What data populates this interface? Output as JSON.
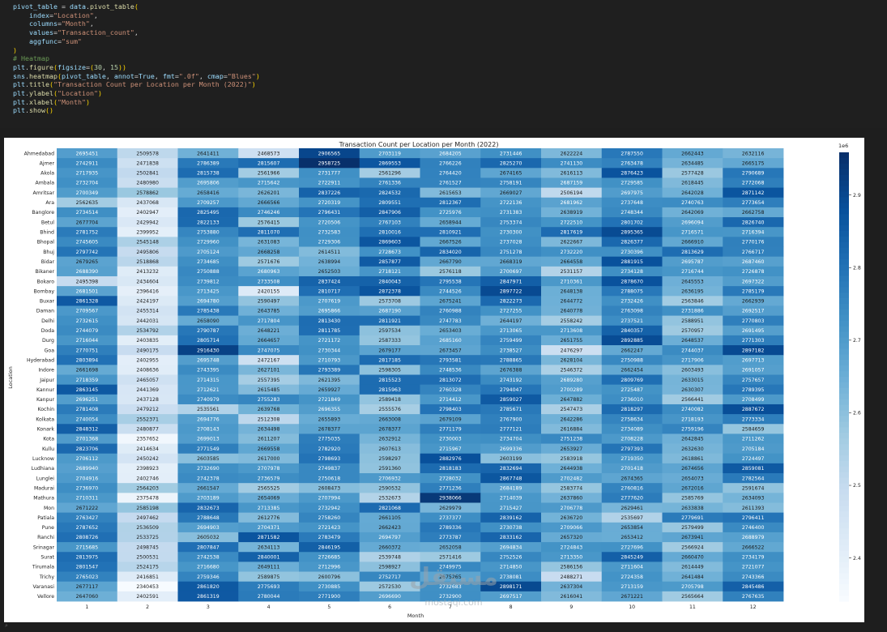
{
  "code": {
    "lines": [
      "pivot_table = data.pivot_table(",
      "    index=\"Location\",",
      "    columns=\"Month\",",
      "    values=\"Transaction_count\",",
      "    aggfunc=\"sum\"",
      ")",
      "# Heatmap",
      "plt.figure(figsize=(30, 15))",
      "sns.heatmap(pivot_table, annot=True, fmt=\".0f\", cmap=\"Blues\")",
      "plt.title(\"Transaction Count per Location per Month (2022)\")",
      "plt.ylabel(\"Location\")",
      "plt.xlabel(\"Month\")",
      "plt.show()"
    ]
  },
  "watermark": {
    "arabic": "مستقل",
    "latin": "mostaql.com"
  },
  "corner_glyph": "⌕",
  "chart_data": {
    "type": "heatmap",
    "title": "Transaction Count per Location per Month (2022)",
    "xlabel": "Month",
    "ylabel": "Location",
    "colormap": "Blues",
    "color_range": [
      2340453,
      2958725
    ],
    "colorbar": {
      "ticks": [
        2.4,
        2.5,
        2.6,
        2.7,
        2.8,
        2.9
      ],
      "multiplier": "1e6"
    },
    "columns": [
      "1",
      "2",
      "3",
      "4",
      "5",
      "6",
      "7",
      "8",
      "9",
      "10",
      "11",
      "12"
    ],
    "rows": [
      "Ahmedabad",
      "Ajmer",
      "Akola",
      "Ambala",
      "Amritsar",
      "Ara",
      "Banglore",
      "Betul",
      "Bhind",
      "Bhopal",
      "Bhuj",
      "Bidar",
      "Bikaner",
      "Bokaro",
      "Bombay",
      "Buxar",
      "Daman",
      "Delhi",
      "Doda",
      "Durg",
      "Goa",
      "Hyderabad",
      "Indore",
      "Jaipur",
      "Kannur",
      "Kanpur",
      "Kochin",
      "Kolkata",
      "Konark",
      "Kota",
      "Kullu",
      "Lucknow",
      "Ludhiana",
      "Lunglei",
      "Madurai",
      "Mathura",
      "Mon",
      "Patiala",
      "Pune",
      "Ranchi",
      "Srinagar",
      "Surat",
      "Tirumala",
      "Trichy",
      "Varanasi",
      "Vellore"
    ],
    "values": [
      [
        2695451,
        2509578,
        2641411,
        2468573,
        2906565,
        2703119,
        2684205,
        2731446,
        2622224,
        2787550,
        2662443,
        2632116
      ],
      [
        2742911,
        2471838,
        2786389,
        2815607,
        2958725,
        2869553,
        2766226,
        2825270,
        2741130,
        2763478,
        2634485,
        2665175
      ],
      [
        2717935,
        2502841,
        2815738,
        2561966,
        2731777,
        2561296,
        2764420,
        2674165,
        2616113,
        2876423,
        2577428,
        2790689
      ],
      [
        2732704,
        2480980,
        2695806,
        2715642,
        2722911,
        2761336,
        2761527,
        2758191,
        2687159,
        2729585,
        2618445,
        2772068
      ],
      [
        2700349,
        2578862,
        2658416,
        2626201,
        2837226,
        2824532,
        2615653,
        2669027,
        2506194,
        2697975,
        2642028,
        2871142
      ],
      [
        2562635,
        2437068,
        2709257,
        2666566,
        2720319,
        2809551,
        2812367,
        2722136,
        2681962,
        2737648,
        2740763,
        2773654
      ],
      [
        2734514,
        2402947,
        2825495,
        2746246,
        2796431,
        2847906,
        2725976,
        2731383,
        2638919,
        2748344,
        2642069,
        2662758
      ],
      [
        2677704,
        2429942,
        2822133,
        2576415,
        2720506,
        2767103,
        2658944,
        2753374,
        2722510,
        2801702,
        2696094,
        2826740
      ],
      [
        2781752,
        2399952,
        2753880,
        2811070,
        2732583,
        2810016,
        2810921,
        2730300,
        2817619,
        2895365,
        2716571,
        2716394
      ],
      [
        2745605,
        2545148,
        2729960,
        2631083,
        2729306,
        2869603,
        2667526,
        2737028,
        2622667,
        2826377,
        2666910,
        2770176
      ],
      [
        2797742,
        2495806,
        2705124,
        2668258,
        2614511,
        2728673,
        2834020,
        2751278,
        2732220,
        2730396,
        2813629,
        2766717
      ],
      [
        2679265,
        2518868,
        2734685,
        2571676,
        2638994,
        2857877,
        2667790,
        2668319,
        2664558,
        2881915,
        2695787,
        2687460
      ],
      [
        2688390,
        2413232,
        2750888,
        2680963,
        2652503,
        2718121,
        2576118,
        2700697,
        2531157,
        2734128,
        2716744,
        2726878
      ],
      [
        2495398,
        2434604,
        2739812,
        2733508,
        2837424,
        2840043,
        2795538,
        2847971,
        2710361,
        2878670,
        2645553,
        2697322
      ],
      [
        2681501,
        2396416,
        2713425,
        2420155,
        2810717,
        2872378,
        2744526,
        2897722,
        2648138,
        2788075,
        2636195,
        2785179
      ],
      [
        2861328,
        2424197,
        2694780,
        2590497,
        2707619,
        2573708,
        2675241,
        2822273,
        2644772,
        2732426,
        2563846,
        2662939
      ],
      [
        2709567,
        2455314,
        2785438,
        2643785,
        2695866,
        2687190,
        2760988,
        2727255,
        2640778,
        2763098,
        2731886,
        2692517
      ],
      [
        2732615,
        2442031,
        2658090,
        2717804,
        2813430,
        2811921,
        2747783,
        2644197,
        2558242,
        2737521,
        2588951,
        2770803
      ],
      [
        2744079,
        2534792,
        2790787,
        2648221,
        2811785,
        2597534,
        2653403,
        2713065,
        2713608,
        2840357,
        2570957,
        2691495
      ],
      [
        2716044,
        2403835,
        2805714,
        2664657,
        2721172,
        2587333,
        2685160,
        2759499,
        2651755,
        2892885,
        2648537,
        2771303
      ],
      [
        2770751,
        2490175,
        2916430,
        2747075,
        2730344,
        2679177,
        2673457,
        2738527,
        2476297,
        2662247,
        2744037,
        2897182
      ],
      [
        2803894,
        2402955,
        2695748,
        2472167,
        2710793,
        2817185,
        2793581,
        2788865,
        2628104,
        2750988,
        2717906,
        2697713
      ],
      [
        2661698,
        2408636,
        2743395,
        2627101,
        2793389,
        2598305,
        2748536,
        2676388,
        2546372,
        2662454,
        2603493,
        2691057
      ],
      [
        2718359,
        2465057,
        2714315,
        2557395,
        2621395,
        2815523,
        2813072,
        2743192,
        2689280,
        2809769,
        2633015,
        2757657
      ],
      [
        2863145,
        2441369,
        2712621,
        2615485,
        2659927,
        2815963,
        2760328,
        2794047,
        2700289,
        2725487,
        2630307,
        2789395
      ],
      [
        2696251,
        2437128,
        2740979,
        2755283,
        2721849,
        2589418,
        2714412,
        2859027,
        2647882,
        2736010,
        2566441,
        2708499
      ],
      [
        2781408,
        2479212,
        2535561,
        2639768,
        2696355,
        2555576,
        2798403,
        2785671,
        2547473,
        2818297,
        2740082,
        2887672
      ],
      [
        2740054,
        2552371,
        2694776,
        2512308,
        2655893,
        2663008,
        2679109,
        2767900,
        2642286,
        2758634,
        2718193,
        2773334
      ],
      [
        2848312,
        2480877,
        2708143,
        2634498,
        2678377,
        2678377,
        2771179,
        2777121,
        2616884,
        2734089,
        2759196,
        2584659
      ],
      [
        2701368,
        2357652,
        2699013,
        2611207,
        2775035,
        2632912,
        2730003,
        2734704,
        2751238,
        2708228,
        2642845,
        2711262
      ],
      [
        2823706,
        2414634,
        2771549,
        2669558,
        2782920,
        2607613,
        2715967,
        2699336,
        2653927,
        2797393,
        2632630,
        2705184
      ],
      [
        2706112,
        2450242,
        2603585,
        2617000,
        2798693,
        2598297,
        2882976,
        2603199,
        2583918,
        2719350,
        2618861,
        2724497
      ],
      [
        2689940,
        2398923,
        2732690,
        2707978,
        2749837,
        2591360,
        2818183,
        2832694,
        2644938,
        2701418,
        2674656,
        2859081
      ],
      [
        2704916,
        2402746,
        2742378,
        2736579,
        2750618,
        2706932,
        2728032,
        2867748,
        2702482,
        2674365,
        2654073,
        2782564
      ],
      [
        2736970,
        2564203,
        2661547,
        2565525,
        2608473,
        2590532,
        2771236,
        2684189,
        2583774,
        2760816,
        2672016,
        2591674
      ],
      [
        2710311,
        2375478,
        2703189,
        2654069,
        2707994,
        2532673,
        2938066,
        2714039,
        2637860,
        2777620,
        2585769,
        2634093
      ],
      [
        2671222,
        2585198,
        2832673,
        2713385,
        2732942,
        2821068,
        2629979,
        2715427,
        2706778,
        2629461,
        2633838,
        2611393
      ],
      [
        2763427,
        2497462,
        2788648,
        2612776,
        2758260,
        2661105,
        2737377,
        2839162,
        2636720,
        2535697,
        2779691,
        2796411
      ],
      [
        2787652,
        2536509,
        2694903,
        2704371,
        2721423,
        2662423,
        2789336,
        2730738,
        2709066,
        2653854,
        2579499,
        2746400
      ],
      [
        2808726,
        2533725,
        2605032,
        2871582,
        2783479,
        2694797,
        2773787,
        2833162,
        2657320,
        2653412,
        2673941,
        2688979
      ],
      [
        2715685,
        2498745,
        2807847,
        2634113,
        2846195,
        2660372,
        2652058,
        2694834,
        2724843,
        2727696,
        2566924,
        2666522
      ],
      [
        2813975,
        2500531,
        2742538,
        2840001,
        2726685,
        2539748,
        2571416,
        2752526,
        2713350,
        2845249,
        2660470,
        2734179
      ],
      [
        2801547,
        2524175,
        2716680,
        2649111,
        2712996,
        2598927,
        2749975,
        2714850,
        2586156,
        2711604,
        2614449,
        2721077
      ],
      [
        2765023,
        2416851,
        2759346,
        2589875,
        2600796,
        2752717,
        2675265,
        2738081,
        2488271,
        2724358,
        2641484,
        2743366
      ],
      [
        2677117,
        2340453,
        2861820,
        2775693,
        2730885,
        2572530,
        2732683,
        2898171,
        2637304,
        2713159,
        2705798,
        2845486
      ],
      [
        2647060,
        2402591,
        2861319,
        2780044,
        2771900,
        2696690,
        2732900,
        2697517,
        2616041,
        2671221,
        2565664,
        2767635
      ]
    ]
  }
}
